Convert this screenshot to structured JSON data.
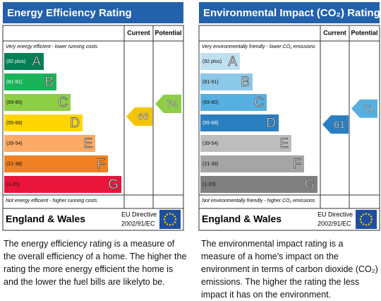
{
  "panels": [
    {
      "title": "Energy Efficiency Rating",
      "columns": [
        "Current",
        "Potential"
      ],
      "top_note": "Very energy efficient - lower running costs",
      "bottom_note": "Not energy efficient - higher running costs",
      "bands": [
        {
          "range": "(92 plus)",
          "letter": "A"
        },
        {
          "range": "(81-91)",
          "letter": "B"
        },
        {
          "range": "(69-80)",
          "letter": "C"
        },
        {
          "range": "(55-68)",
          "letter": "D"
        },
        {
          "range": "(39-54)",
          "letter": "E"
        },
        {
          "range": "(21-38)",
          "letter": "F"
        },
        {
          "range": "(1-20)",
          "letter": "G"
        }
      ],
      "current": 66,
      "potential": 74,
      "region": "England & Wales",
      "directive": [
        "EU Directive",
        "2002/91/EC"
      ],
      "description": "The energy efficiency rating is a measure of the overall efficiency of a home. The higher the rating the more energy efficient the home is and the lower the fuel bills are likelyto be."
    },
    {
      "title": "Environmental Impact (CO₂) Rating",
      "columns": [
        "Current",
        "Potential"
      ],
      "top_note": "Very environmentally friendly - lower CO₂ emissions",
      "bottom_note": "Not environmentally friendly - higher CO₂ emissions",
      "bands": [
        {
          "range": "(92 plus)",
          "letter": "A"
        },
        {
          "range": "(81-91)",
          "letter": "B"
        },
        {
          "range": "(69-80)",
          "letter": "C"
        },
        {
          "range": "(55-68)",
          "letter": "D"
        },
        {
          "range": "(39-54)",
          "letter": "E"
        },
        {
          "range": "(21-38)",
          "letter": "F"
        },
        {
          "range": "(1-20)",
          "letter": "G"
        }
      ],
      "current": 61,
      "potential": 71,
      "region": "England & Wales",
      "directive": [
        "EU Directive",
        "2002/91/EC"
      ],
      "description": "The environmental impact rating is a measure of a home's impact on the environment in terms of carbon dioxide (CO₂) emissions. The higher the rating the less impact it has on the environment."
    }
  ]
}
